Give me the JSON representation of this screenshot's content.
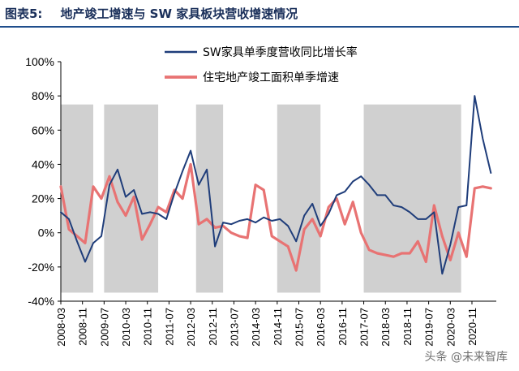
{
  "figure": {
    "label": "图表5:",
    "title": "地产竣工增速与 SW 家具板块营收增速情况"
  },
  "watermark": "头条 @未来智库",
  "chart_data": {
    "type": "line",
    "x_ticks": [
      "2008-03",
      "2008-11",
      "2009-07",
      "2010-03",
      "2010-11",
      "2011-07",
      "2012-03",
      "2012-11",
      "2013-07",
      "2014-03",
      "2014-11",
      "2015-07",
      "2016-03",
      "2016-11",
      "2017-07",
      "2018-03",
      "2018-11",
      "2019-07",
      "2020-03",
      "2020-11"
    ],
    "ylim": [
      -40,
      100
    ],
    "y_ticks": [
      -40,
      -20,
      0,
      20,
      40,
      60,
      80,
      100
    ],
    "y_tick_labels": [
      "-40%",
      "-20%",
      "0%",
      "20%",
      "40%",
      "60%",
      "80%",
      "100%"
    ],
    "shaded_periods": [
      {
        "start": "2008-03",
        "end": "2009-03",
        "ylim": [
          -35,
          75
        ]
      },
      {
        "start": "2009-07",
        "end": "2011-03",
        "ylim": [
          -35,
          75
        ]
      },
      {
        "start": "2012-05",
        "end": "2013-03",
        "ylim": [
          -35,
          75
        ]
      },
      {
        "start": "2014-11",
        "end": "2016-03",
        "ylim": [
          -35,
          75
        ]
      },
      {
        "start": "2017-07",
        "end": "2020-07",
        "ylim": [
          -35,
          75
        ]
      }
    ],
    "series": [
      {
        "name": "SW家具单季度营收同比增长率",
        "color": "#1f3d7a",
        "x": [
          "2008-03",
          "2008-06",
          "2008-09",
          "2008-12",
          "2009-03",
          "2009-06",
          "2009-09",
          "2009-12",
          "2010-03",
          "2010-06",
          "2010-09",
          "2010-12",
          "2011-03",
          "2011-06",
          "2011-09",
          "2011-12",
          "2012-03",
          "2012-06",
          "2012-09",
          "2012-12",
          "2013-03",
          "2013-06",
          "2013-09",
          "2013-12",
          "2014-03",
          "2014-06",
          "2014-09",
          "2014-12",
          "2015-03",
          "2015-06",
          "2015-09",
          "2015-12",
          "2016-03",
          "2016-06",
          "2016-09",
          "2016-12",
          "2017-03",
          "2017-06",
          "2017-09",
          "2017-12",
          "2018-03",
          "2018-06",
          "2018-09",
          "2018-12",
          "2019-03",
          "2019-06",
          "2019-09",
          "2019-12",
          "2020-03",
          "2020-06",
          "2020-09",
          "2020-12",
          "2021-03",
          "2021-06"
        ],
        "y": [
          12,
          8,
          -5,
          -17,
          -6,
          -2,
          28,
          37,
          21,
          25,
          11,
          12,
          11,
          8,
          23,
          36,
          48,
          28,
          37,
          -8,
          6,
          5,
          7,
          8,
          6,
          9,
          7,
          8,
          4,
          -5,
          10,
          17,
          4,
          11,
          22,
          24,
          30,
          33,
          28,
          22,
          22,
          16,
          15,
          12,
          8,
          8,
          12,
          -24,
          -7,
          15,
          16,
          80,
          55,
          35
        ]
      },
      {
        "name": "住宅地产竣工面积单季增速",
        "color": "#e87373",
        "x": [
          "2008-03",
          "2008-06",
          "2008-09",
          "2008-12",
          "2009-03",
          "2009-06",
          "2009-09",
          "2009-12",
          "2010-03",
          "2010-06",
          "2010-09",
          "2010-12",
          "2011-03",
          "2011-06",
          "2011-09",
          "2011-12",
          "2012-03",
          "2012-06",
          "2012-09",
          "2012-12",
          "2013-03",
          "2013-06",
          "2013-09",
          "2013-12",
          "2014-03",
          "2014-06",
          "2014-09",
          "2014-12",
          "2015-03",
          "2015-06",
          "2015-09",
          "2015-12",
          "2016-03",
          "2016-06",
          "2016-09",
          "2016-12",
          "2017-03",
          "2017-06",
          "2017-09",
          "2017-12",
          "2018-03",
          "2018-06",
          "2018-09",
          "2018-12",
          "2019-03",
          "2019-06",
          "2019-09",
          "2019-12",
          "2020-03",
          "2020-06",
          "2020-09",
          "2020-12",
          "2021-03",
          "2021-06"
        ],
        "y": [
          27,
          2,
          -2,
          -6,
          27,
          20,
          33,
          18,
          10,
          21,
          -4,
          5,
          15,
          12,
          25,
          20,
          40,
          5,
          8,
          3,
          4,
          0,
          -2,
          -3,
          28,
          25,
          -2,
          -5,
          -8,
          -22,
          2,
          8,
          -2,
          15,
          20,
          5,
          18,
          0,
          -10,
          -12,
          -13,
          -14,
          -12,
          -12,
          -5,
          -17,
          16,
          -2,
          -16,
          0,
          -14,
          26,
          27,
          26
        ]
      }
    ],
    "legend_position": "top-right"
  }
}
